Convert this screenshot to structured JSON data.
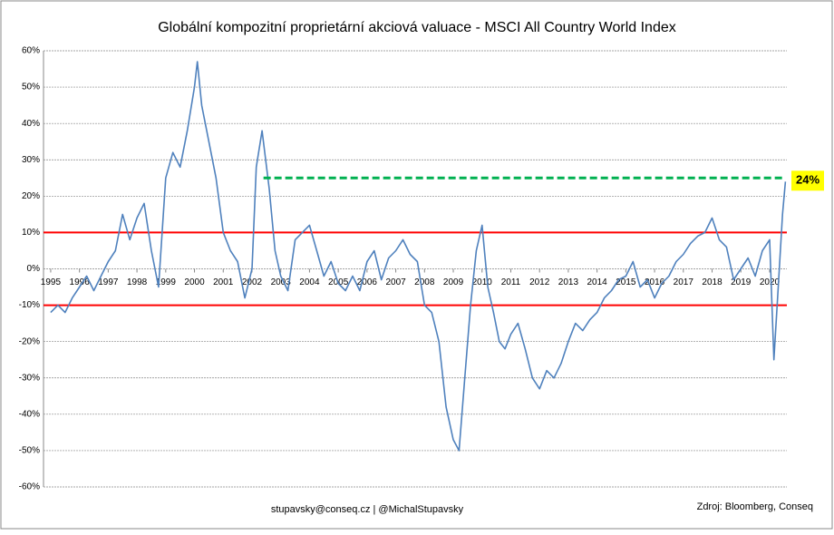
{
  "chart_data": {
    "type": "line",
    "title": "Globální kompozitní proprietární akciová valuace - MSCI All Country World Index",
    "footer_left": "stupavsky@conseq.cz  |  @MichalStupavsky",
    "footer_right": "Zdroj: Bloomberg, Conseq",
    "color": "#4f81bd",
    "x": [
      1995.0,
      1995.25,
      1995.5,
      1995.75,
      1996.0,
      1996.25,
      1996.5,
      1996.75,
      1997.0,
      1997.25,
      1997.5,
      1997.75,
      1998.0,
      1998.25,
      1998.5,
      1998.75,
      1999.0,
      1999.25,
      1999.5,
      1999.75,
      2000.0,
      2000.1,
      2000.25,
      2000.5,
      2000.75,
      2001.0,
      2001.25,
      2001.5,
      2001.75,
      2002.0,
      2002.15,
      2002.35,
      2002.6,
      2002.8,
      2003.0,
      2003.25,
      2003.5,
      2003.75,
      2004.0,
      2004.25,
      2004.5,
      2004.75,
      2005.0,
      2005.25,
      2005.5,
      2005.75,
      2006.0,
      2006.25,
      2006.5,
      2006.75,
      2007.0,
      2007.25,
      2007.5,
      2007.75,
      2008.0,
      2008.25,
      2008.5,
      2008.75,
      2009.0,
      2009.2,
      2009.4,
      2009.6,
      2009.8,
      2010.0,
      2010.2,
      2010.4,
      2010.6,
      2010.8,
      2011.0,
      2011.25,
      2011.5,
      2011.75,
      2012.0,
      2012.25,
      2012.5,
      2012.75,
      2013.0,
      2013.25,
      2013.5,
      2013.75,
      2014.0,
      2014.25,
      2014.5,
      2014.75,
      2015.0,
      2015.25,
      2015.5,
      2015.75,
      2016.0,
      2016.25,
      2016.5,
      2016.75,
      2017.0,
      2017.25,
      2017.5,
      2017.75,
      2018.0,
      2018.25,
      2018.5,
      2018.75,
      2019.0,
      2019.25,
      2019.5,
      2019.75,
      2020.0,
      2020.15,
      2020.3,
      2020.45,
      2020.55
    ],
    "values": [
      -12,
      -10,
      -12,
      -8,
      -5,
      -2,
      -6,
      -2,
      2,
      5,
      15,
      8,
      14,
      18,
      5,
      -5,
      25,
      32,
      28,
      38,
      50,
      57,
      45,
      35,
      25,
      10,
      5,
      2,
      -8,
      0,
      28,
      38,
      22,
      5,
      -2,
      -6,
      8,
      10,
      12,
      5,
      -2,
      2,
      -4,
      -6,
      -2,
      -6,
      2,
      5,
      -3,
      3,
      5,
      8,
      4,
      2,
      -10,
      -12,
      -20,
      -38,
      -47,
      -50,
      -30,
      -10,
      5,
      12,
      -5,
      -12,
      -20,
      -22,
      -18,
      -15,
      -22,
      -30,
      -33,
      -28,
      -30,
      -26,
      -20,
      -15,
      -17,
      -14,
      -12,
      -8,
      -6,
      -3,
      -2,
      2,
      -5,
      -3,
      -8,
      -4,
      -2,
      2,
      4,
      7,
      9,
      10,
      14,
      8,
      6,
      -3,
      0,
      3,
      -2,
      5,
      8,
      -25,
      -5,
      15,
      24
    ],
    "xlim": [
      1994.75,
      2020.6
    ],
    "xticks": [
      1995,
      1996,
      1997,
      1998,
      1999,
      2000,
      2001,
      2002,
      2003,
      2004,
      2005,
      2006,
      2007,
      2008,
      2009,
      2010,
      2011,
      2012,
      2013,
      2014,
      2015,
      2016,
      2017,
      2018,
      2019,
      2020
    ],
    "ylim": [
      -60,
      60
    ],
    "yticks": [
      {
        "value": -60,
        "label": "-60%"
      },
      {
        "value": -50,
        "label": "-50%"
      },
      {
        "value": -40,
        "label": "-40%"
      },
      {
        "value": -30,
        "label": "-30%"
      },
      {
        "value": -20,
        "label": "-20%"
      },
      {
        "value": -10,
        "label": "-10%"
      },
      {
        "value": 0,
        "label": "0%"
      },
      {
        "value": 10,
        "label": "10%"
      },
      {
        "value": 20,
        "label": "20%"
      },
      {
        "value": 30,
        "label": "30%"
      },
      {
        "value": 40,
        "label": "40%"
      },
      {
        "value": 50,
        "label": "50%"
      },
      {
        "value": 60,
        "label": "60%"
      }
    ],
    "grid": true,
    "reference_lines": [
      {
        "value": 10,
        "color": "#ff0000"
      },
      {
        "value": -10,
        "color": "#ff0000"
      }
    ],
    "highlight_line": {
      "y": 25,
      "x": [
        2002.4,
        2020.5
      ],
      "color": "#00b050"
    },
    "current_value": {
      "value": 24,
      "label": "24%"
    }
  }
}
